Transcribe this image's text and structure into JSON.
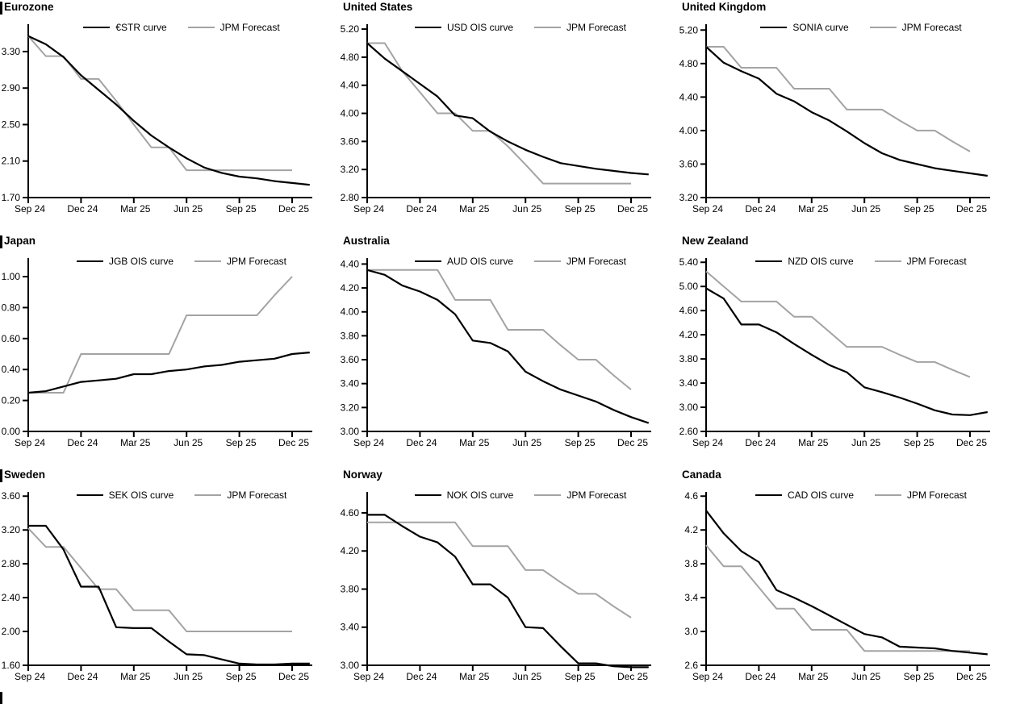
{
  "colors": {
    "main_series": "#000000",
    "forecast_series": "#a3a3a3",
    "axis": "#000000",
    "background": "#ffffff"
  },
  "x_axis": {
    "tick_labels": [
      "Sep 24",
      "Dec 24",
      "Mar 25",
      "Jun 25",
      "Sep 25",
      "Dec 25"
    ],
    "tick_month_positions": [
      0,
      3,
      6,
      9,
      12,
      15
    ]
  },
  "chart_data": [
    {
      "id": "eurozone",
      "type": "line",
      "title": "Eurozone",
      "left_bar": true,
      "ylim": [
        1.7,
        3.6
      ],
      "yticks": [
        1.7,
        2.1,
        2.5,
        2.9,
        3.3
      ],
      "ytick_labels": [
        "1.70",
        "2.10",
        "2.50",
        "2.90",
        "3.30"
      ],
      "legend_position": "top",
      "grid": false,
      "series": [
        {
          "name": "€STR curve",
          "color": "#000000",
          "values": [
            3.47,
            3.38,
            3.24,
            3.04,
            2.88,
            2.72,
            2.54,
            2.38,
            2.25,
            2.13,
            2.03,
            1.97,
            1.93,
            1.91,
            1.88,
            1.86,
            1.84
          ]
        },
        {
          "name": "JPM Forecast",
          "color": "#a3a3a3",
          "values": [
            3.47,
            3.25,
            3.25,
            3.0,
            3.0,
            2.76,
            2.5,
            2.25,
            2.25,
            2.0,
            2.0,
            2.0,
            2.0,
            2.0,
            2.0,
            2.0
          ]
        }
      ]
    },
    {
      "id": "united-states",
      "type": "line",
      "title": "United States",
      "left_bar": false,
      "ylim": [
        2.8,
        5.27
      ],
      "yticks": [
        2.8,
        3.2,
        3.6,
        4.0,
        4.4,
        4.8,
        5.2
      ],
      "ytick_labels": [
        "2.80",
        "3.20",
        "3.60",
        "4.00",
        "4.40",
        "4.80",
        "5.20"
      ],
      "legend_position": "top",
      "grid": false,
      "series": [
        {
          "name": "USD OIS curve",
          "color": "#000000",
          "values": [
            5.0,
            4.78,
            4.6,
            4.42,
            4.24,
            3.97,
            3.93,
            3.74,
            3.6,
            3.48,
            3.38,
            3.29,
            3.25,
            3.21,
            3.18,
            3.15,
            3.13
          ]
        },
        {
          "name": "JPM Forecast",
          "color": "#a3a3a3",
          "values": [
            5.0,
            5.0,
            4.6,
            4.3,
            4.0,
            4.0,
            3.75,
            3.75,
            3.53,
            3.27,
            3.0,
            3.0,
            3.0,
            3.0,
            3.0,
            3.0
          ]
        }
      ]
    },
    {
      "id": "united-kingdom",
      "type": "line",
      "title": "United Kingdom",
      "left_bar": false,
      "ylim": [
        3.2,
        5.27
      ],
      "yticks": [
        3.2,
        3.6,
        4.0,
        4.4,
        4.8,
        5.2
      ],
      "ytick_labels": [
        "3.20",
        "3.60",
        "4.00",
        "4.40",
        "4.80",
        "5.20"
      ],
      "legend_position": "top",
      "grid": false,
      "series": [
        {
          "name": "SONIA curve",
          "color": "#000000",
          "values": [
            5.0,
            4.81,
            4.71,
            4.62,
            4.44,
            4.35,
            4.22,
            4.12,
            3.99,
            3.85,
            3.73,
            3.65,
            3.6,
            3.55,
            3.52,
            3.49,
            3.46
          ]
        },
        {
          "name": "JPM Forecast",
          "color": "#a3a3a3",
          "values": [
            5.0,
            5.0,
            4.75,
            4.75,
            4.75,
            4.5,
            4.5,
            4.5,
            4.25,
            4.25,
            4.25,
            4.12,
            4.0,
            4.0,
            3.87,
            3.75
          ]
        }
      ]
    },
    {
      "id": "japan",
      "type": "line",
      "title": "Japan",
      "left_bar": true,
      "ylim": [
        0.0,
        1.12
      ],
      "yticks": [
        0.0,
        0.2,
        0.4,
        0.6,
        0.8,
        1.0
      ],
      "ytick_labels": [
        "0.00",
        "0.20",
        "0.40",
        "0.60",
        "0.80",
        "1.00"
      ],
      "legend_position": "top",
      "grid": false,
      "series": [
        {
          "name": "JGB OIS curve",
          "color": "#000000",
          "values": [
            0.25,
            0.26,
            0.29,
            0.32,
            0.33,
            0.34,
            0.37,
            0.37,
            0.39,
            0.4,
            0.42,
            0.43,
            0.45,
            0.46,
            0.47,
            0.5,
            0.51
          ]
        },
        {
          "name": "JPM Forecast",
          "color": "#a3a3a3",
          "values": [
            0.25,
            0.25,
            0.25,
            0.5,
            0.5,
            0.5,
            0.5,
            0.5,
            0.5,
            0.75,
            0.75,
            0.75,
            0.75,
            0.75,
            0.88,
            1.0
          ]
        }
      ]
    },
    {
      "id": "australia",
      "type": "line",
      "title": "Australia",
      "left_bar": false,
      "ylim": [
        3.0,
        4.45
      ],
      "yticks": [
        3.0,
        3.2,
        3.4,
        3.6,
        3.8,
        4.0,
        4.2,
        4.4
      ],
      "ytick_labels": [
        "3.00",
        "3.20",
        "3.40",
        "3.60",
        "3.80",
        "4.00",
        "4.20",
        "4.40"
      ],
      "legend_position": "top",
      "grid": false,
      "series": [
        {
          "name": "AUD OIS curve",
          "color": "#000000",
          "values": [
            4.35,
            4.31,
            4.22,
            4.17,
            4.1,
            3.98,
            3.76,
            3.74,
            3.67,
            3.5,
            3.42,
            3.35,
            3.3,
            3.25,
            3.18,
            3.12,
            3.07
          ]
        },
        {
          "name": "JPM Forecast",
          "color": "#a3a3a3",
          "values": [
            4.35,
            4.35,
            4.35,
            4.35,
            4.35,
            4.1,
            4.1,
            4.1,
            3.85,
            3.85,
            3.85,
            3.72,
            3.6,
            3.6,
            3.47,
            3.35
          ]
        }
      ]
    },
    {
      "id": "new-zealand",
      "type": "line",
      "title": "New Zealand",
      "left_bar": false,
      "ylim": [
        2.6,
        5.47
      ],
      "yticks": [
        2.6,
        3.0,
        3.4,
        3.8,
        4.2,
        4.6,
        5.0,
        5.4
      ],
      "ytick_labels": [
        "2.60",
        "3.00",
        "3.40",
        "3.80",
        "4.20",
        "4.60",
        "5.00",
        "5.40"
      ],
      "legend_position": "top",
      "grid": false,
      "series": [
        {
          "name": "NZD OIS curve",
          "color": "#000000",
          "values": [
            4.97,
            4.8,
            4.37,
            4.37,
            4.24,
            4.05,
            3.87,
            3.7,
            3.58,
            3.33,
            3.25,
            3.16,
            3.06,
            2.95,
            2.88,
            2.87,
            2.92
          ]
        },
        {
          "name": "JPM Forecast",
          "color": "#a3a3a3",
          "values": [
            5.25,
            5.0,
            4.75,
            4.75,
            4.75,
            4.5,
            4.5,
            4.25,
            4.0,
            4.0,
            4.0,
            3.87,
            3.75,
            3.75,
            3.62,
            3.5
          ]
        }
      ]
    },
    {
      "id": "sweden",
      "type": "line",
      "title": "Sweden",
      "left_bar": true,
      "ylim": [
        1.6,
        3.65
      ],
      "yticks": [
        1.6,
        2.0,
        2.4,
        2.8,
        3.2,
        3.6
      ],
      "ytick_labels": [
        "1.60",
        "2.00",
        "2.40",
        "2.80",
        "3.20",
        "3.60"
      ],
      "legend_position": "top",
      "grid": false,
      "series": [
        {
          "name": "SEK OIS curve",
          "color": "#000000",
          "values": [
            3.25,
            3.25,
            2.97,
            2.53,
            2.53,
            2.05,
            2.04,
            2.04,
            1.88,
            1.73,
            1.72,
            1.67,
            1.62,
            1.61,
            1.61,
            1.62,
            1.62
          ]
        },
        {
          "name": "JPM Forecast",
          "color": "#a3a3a3",
          "values": [
            3.22,
            3.0,
            3.0,
            2.75,
            2.5,
            2.5,
            2.25,
            2.25,
            2.25,
            2.0,
            2.0,
            2.0,
            2.0,
            2.0,
            2.0,
            2.0
          ]
        }
      ]
    },
    {
      "id": "norway",
      "type": "line",
      "title": "Norway",
      "left_bar": false,
      "ylim": [
        3.0,
        4.82
      ],
      "yticks": [
        3.0,
        3.4,
        3.8,
        4.2,
        4.6
      ],
      "ytick_labels": [
        "3.00",
        "3.40",
        "3.80",
        "4.20",
        "4.60"
      ],
      "legend_position": "top",
      "grid": false,
      "series": [
        {
          "name": "NOK OIS curve",
          "color": "#000000",
          "values": [
            4.58,
            4.58,
            4.46,
            4.35,
            4.29,
            4.14,
            3.85,
            3.85,
            3.71,
            3.4,
            3.39,
            3.2,
            3.02,
            3.02,
            2.99,
            2.98,
            2.98
          ]
        },
        {
          "name": "JPM Forecast",
          "color": "#a3a3a3",
          "values": [
            4.5,
            4.5,
            4.5,
            4.5,
            4.5,
            4.5,
            4.25,
            4.25,
            4.25,
            4.0,
            4.0,
            3.87,
            3.75,
            3.75,
            3.62,
            3.5
          ]
        }
      ]
    },
    {
      "id": "canada",
      "type": "line",
      "title": "Canada",
      "left_bar": false,
      "ylim": [
        2.6,
        4.65
      ],
      "yticks": [
        2.6,
        3.0,
        3.4,
        3.8,
        4.2,
        4.6
      ],
      "ytick_labels": [
        "2.6",
        "3.0",
        "3.4",
        "3.8",
        "4.2",
        "4.6"
      ],
      "legend_position": "top",
      "grid": false,
      "series": [
        {
          "name": "CAD OIS curve",
          "color": "#000000",
          "values": [
            4.43,
            4.16,
            3.95,
            3.82,
            3.49,
            3.4,
            3.3,
            3.19,
            3.08,
            2.97,
            2.93,
            2.82,
            2.81,
            2.8,
            2.77,
            2.75,
            2.73
          ]
        },
        {
          "name": "JPM Forecast",
          "color": "#a3a3a3",
          "values": [
            4.02,
            3.77,
            3.77,
            3.52,
            3.27,
            3.27,
            3.02,
            3.02,
            3.02,
            2.77,
            2.77,
            2.77,
            2.77,
            2.77,
            2.77,
            2.77
          ]
        }
      ]
    }
  ]
}
